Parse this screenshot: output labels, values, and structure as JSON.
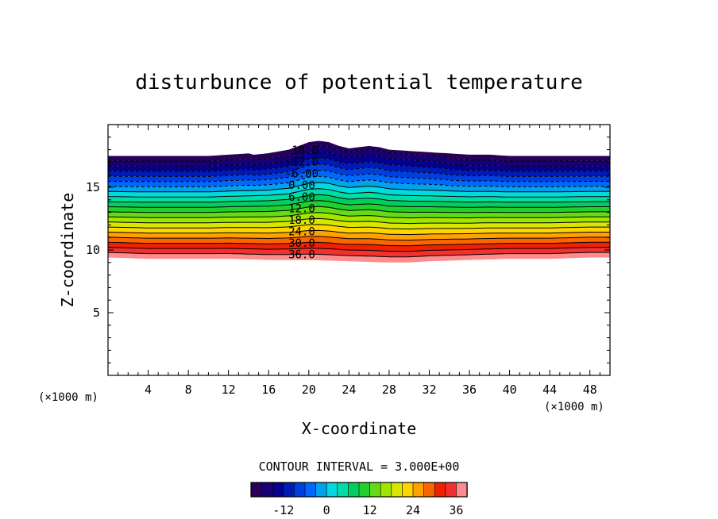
{
  "chart_data": {
    "type": "contour",
    "title": "disturbunce of potential temperature",
    "xlabel": "X-coordinate",
    "ylabel": "Z-coordinate",
    "x_unit": "(×1000 m)",
    "y_unit": "(×1000 m)",
    "xlim": [
      0,
      50
    ],
    "ylim": [
      0,
      20
    ],
    "x_ticks": [
      4,
      8,
      12,
      16,
      20,
      24,
      28,
      32,
      36,
      40,
      44,
      48
    ],
    "y_ticks": [
      5,
      10,
      15
    ],
    "contour_interval_label": "CONTOUR INTERVAL = 3.000E+00",
    "contour_interval": 3,
    "value_range": [
      -21,
      39
    ],
    "colorbar_ticks": [
      -12,
      0,
      12,
      24,
      36
    ],
    "contour_labels": [
      "-18.0",
      "-12.0",
      "-6.00",
      "0.00",
      "6.00",
      "12.0",
      "18.0",
      "24.0",
      "30.0",
      "36.0"
    ],
    "top_boundary": {
      "x": [
        0,
        4,
        8,
        10,
        12,
        14,
        16,
        18,
        19,
        20,
        21,
        22,
        23,
        24,
        25,
        26,
        27,
        28,
        30,
        32,
        34,
        36,
        38,
        40,
        42,
        44,
        46,
        48,
        50
      ],
      "z": [
        17.5,
        17.5,
        17.5,
        17.5,
        17.6,
        17.7,
        17.8,
        18.0,
        18.3,
        18.6,
        18.7,
        18.6,
        18.3,
        18.1,
        18.2,
        18.3,
        18.2,
        18.0,
        17.9,
        17.8,
        17.7,
        17.6,
        17.6,
        17.5,
        17.5,
        17.5,
        17.5,
        17.5,
        17.5
      ]
    },
    "bottom_boundary": {
      "x": [
        0,
        4,
        8,
        12,
        16,
        20,
        24,
        28,
        30,
        32,
        36,
        40,
        44,
        48,
        50
      ],
      "z": [
        9.4,
        9.3,
        9.3,
        9.3,
        9.2,
        9.2,
        9.1,
        9.0,
        9.0,
        9.1,
        9.2,
        9.3,
        9.3,
        9.4,
        9.4
      ]
    }
  }
}
